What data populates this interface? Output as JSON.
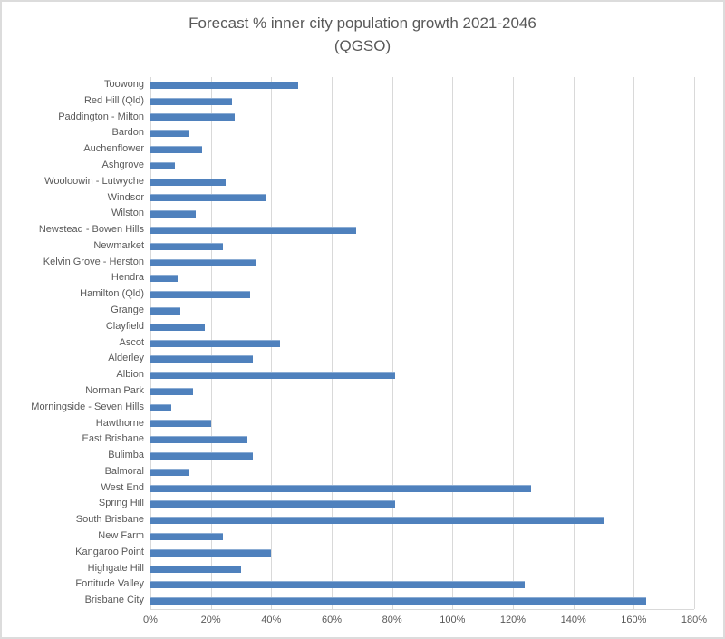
{
  "chart": {
    "title_line1": "Forecast % inner city population growth 2021-2046",
    "title_line2": "(QGSO)"
  },
  "chart_data": {
    "type": "bar",
    "orientation": "horizontal",
    "title": "Forecast % inner city population growth 2021-2046 (QGSO)",
    "categories": [
      "Toowong",
      "Red Hill (Qld)",
      "Paddington - Milton",
      "Bardon",
      "Auchenflower",
      "Ashgrove",
      "Wooloowin - Lutwyche",
      "Windsor",
      "Wilston",
      "Newstead - Bowen Hills",
      "Newmarket",
      "Kelvin Grove - Herston",
      "Hendra",
      "Hamilton (Qld)",
      "Grange",
      "Clayfield",
      "Ascot",
      "Alderley",
      "Albion",
      "Norman Park",
      "Morningside - Seven Hills",
      "Hawthorne",
      "East Brisbane",
      "Bulimba",
      "Balmoral",
      "West End",
      "Spring Hill",
      "South Brisbane",
      "New Farm",
      "Kangaroo Point",
      "Highgate Hill",
      "Fortitude Valley",
      "Brisbane City"
    ],
    "values": [
      49,
      27,
      28,
      13,
      17,
      8,
      25,
      38,
      15,
      68,
      24,
      35,
      9,
      33,
      10,
      18,
      43,
      34,
      81,
      14,
      7,
      20,
      32,
      34,
      13,
      126,
      81,
      150,
      24,
      40,
      30,
      124,
      164
    ],
    "value_unit": "%",
    "xlabel": "",
    "ylabel": "",
    "xlim": [
      0,
      180
    ],
    "x_ticks": [
      "0%",
      "20%",
      "40%",
      "60%",
      "80%",
      "100%",
      "120%",
      "140%",
      "160%",
      "180%"
    ],
    "x_tick_values": [
      0,
      20,
      40,
      60,
      80,
      100,
      120,
      140,
      160,
      180
    ],
    "grid": "vertical",
    "legend": "none",
    "colors": {
      "bar": "#4F81BD",
      "gridline": "#D9D9D9",
      "text": "#595959",
      "frame_border": "#DCDCDC",
      "background": "#FFFFFF"
    }
  }
}
